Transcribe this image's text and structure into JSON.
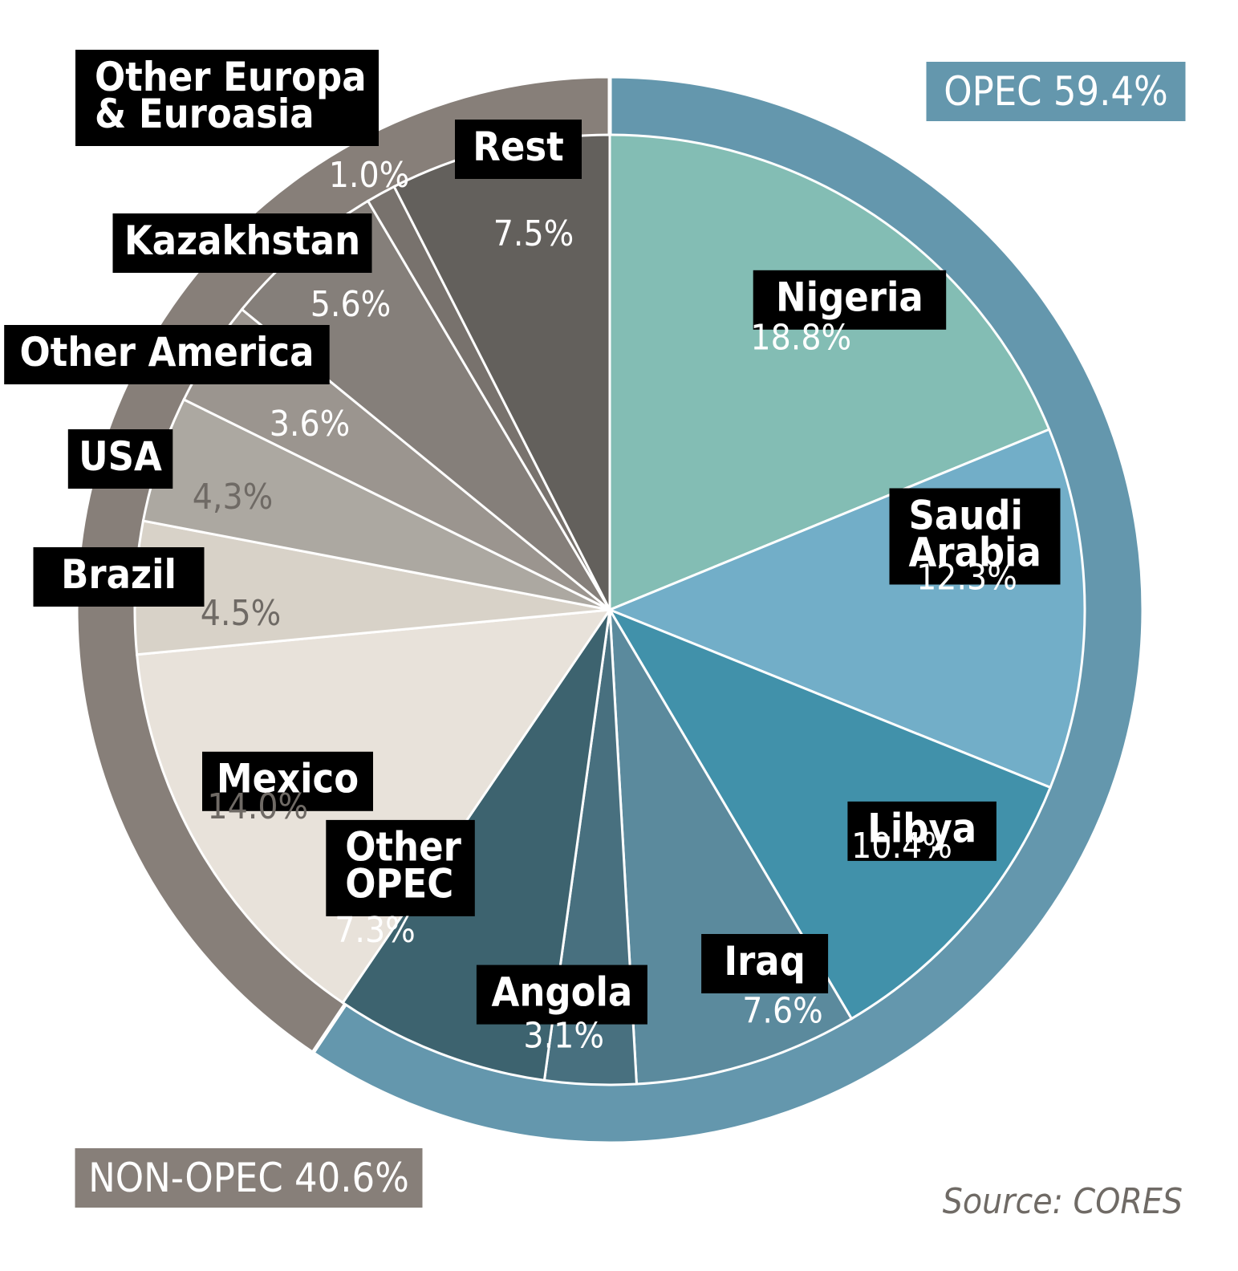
{
  "chart_data": {
    "type": "pie",
    "title": "",
    "source": "Source: CORES",
    "groups": [
      {
        "name": "OPEC",
        "label": "OPEC 59.4%",
        "value": 59.4,
        "color": "#6497ad"
      },
      {
        "name": "NON-OPEC",
        "label": "NON-OPEC 40.6%",
        "value": 40.6,
        "color": "#877f79"
      }
    ],
    "slices": [
      {
        "name": "Nigeria",
        "lines": [
          "Nigeria"
        ],
        "value": 18.8,
        "value_label": "18.8%",
        "color": "#83bdb4",
        "pct_color": "#ffffff",
        "group": "OPEC"
      },
      {
        "name": "Saudi Arabia",
        "lines": [
          "Saudi",
          "Arabia"
        ],
        "value": 12.3,
        "value_label": "12.3%",
        "color": "#72aec8",
        "pct_color": "#ffffff",
        "group": "OPEC"
      },
      {
        "name": "Libya",
        "lines": [
          "Libya"
        ],
        "value": 10.4,
        "value_label": "10.4%",
        "color": "#4191aa",
        "pct_color": "#ffffff",
        "group": "OPEC"
      },
      {
        "name": "Iraq",
        "lines": [
          "Iraq"
        ],
        "value": 7.6,
        "value_label": "7.6%",
        "color": "#5b8a9d",
        "pct_color": "#ffffff",
        "group": "OPEC"
      },
      {
        "name": "Angola",
        "lines": [
          "Angola"
        ],
        "value": 3.1,
        "value_label": "3.1%",
        "color": "#48707f",
        "pct_color": "#ffffff",
        "group": "OPEC"
      },
      {
        "name": "Other OPEC",
        "lines": [
          "Other",
          "OPEC"
        ],
        "value": 7.3,
        "value_label": "7.3%",
        "color": "#3d636f",
        "pct_color": "#ffffff",
        "group": "OPEC"
      },
      {
        "name": "Mexico",
        "lines": [
          "Mexico"
        ],
        "value": 14.0,
        "value_label": "14.0%",
        "color": "#e8e2da",
        "pct_color": "#6f6a65",
        "group": "NON-OPEC"
      },
      {
        "name": "Brazil",
        "lines": [
          "Brazil"
        ],
        "value": 4.5,
        "value_label": "4.5%",
        "color": "#d8d2c8",
        "pct_color": "#6f6a65",
        "group": "NON-OPEC"
      },
      {
        "name": "USA",
        "lines": [
          "USA"
        ],
        "value": 4.3,
        "value_label": "4,3%",
        "color": "#aca8a1",
        "pct_color": "#6f6a65",
        "group": "NON-OPEC"
      },
      {
        "name": "Other America",
        "lines": [
          "Other America"
        ],
        "value": 3.6,
        "value_label": "3.6%",
        "color": "#9b958f",
        "pct_color": "#ffffff",
        "group": "NON-OPEC"
      },
      {
        "name": "Kazakhstan",
        "lines": [
          "Kazakhstan"
        ],
        "value": 5.6,
        "value_label": "5.6%",
        "color": "#857f7a",
        "pct_color": "#ffffff",
        "group": "NON-OPEC"
      },
      {
        "name": "Other Europa & Euroasia",
        "lines": [
          "Other Europa",
          "& Euroasia"
        ],
        "value": 1.0,
        "value_label": "1.0%",
        "color": "#78726d",
        "pct_color": "#ffffff",
        "group": "NON-OPEC"
      },
      {
        "name": "Rest",
        "lines": [
          "Rest"
        ],
        "value": 7.5,
        "value_label": "7.5%",
        "color": "#63605c",
        "pct_color": "#ffffff",
        "group": "NON-OPEC"
      }
    ]
  }
}
